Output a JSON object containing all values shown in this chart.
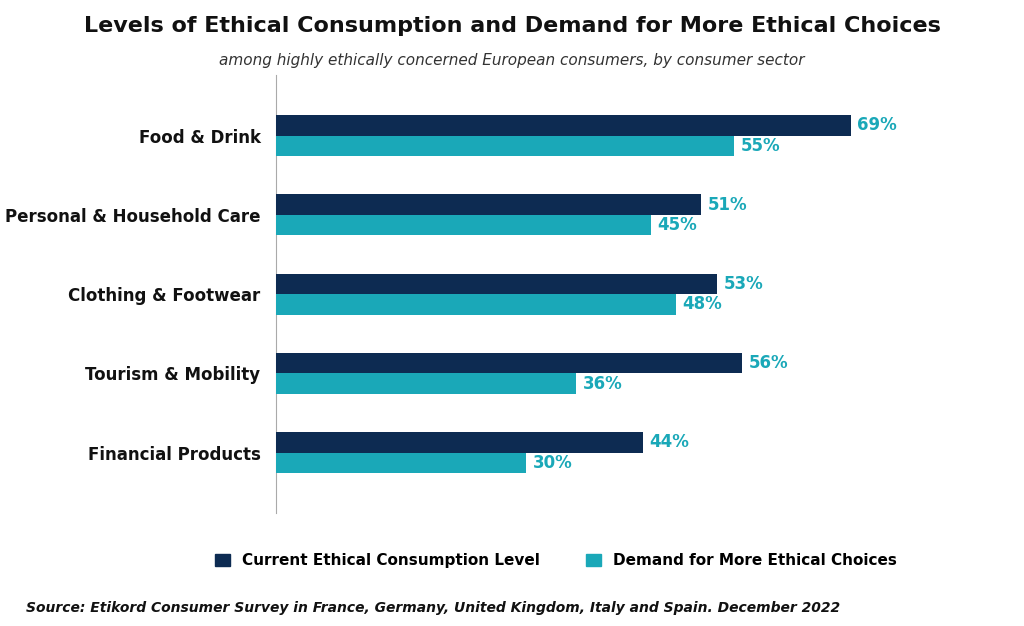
{
  "title": "Levels of Ethical Consumption and Demand for More Ethical Choices",
  "subtitle": "among highly ethically concerned European consumers, by consumer sector",
  "categories": [
    "Food & Drink",
    "Personal & Household Care",
    "Clothing & Footwear",
    "Tourism & Mobility",
    "Financial Products"
  ],
  "ethical_consumption": [
    69,
    51,
    53,
    56,
    44
  ],
  "demand_more": [
    55,
    45,
    48,
    36,
    30
  ],
  "color_consumption": "#0d2b52",
  "color_demand": "#1aa8b8",
  "label_color": "#1aa8b8",
  "xlim": [
    0,
    80
  ],
  "source": "Source: Etikord Consumer Survey in France, Germany, United Kingdom, Italy and Spain. December 2022",
  "legend_label_consumption": "Current Ethical Consumption Level",
  "legend_label_demand": "Demand for More Ethical Choices",
  "title_fontsize": 16,
  "subtitle_fontsize": 11,
  "category_fontsize": 12,
  "value_fontsize": 12,
  "legend_fontsize": 11,
  "source_fontsize": 10,
  "background_color": "#ffffff"
}
